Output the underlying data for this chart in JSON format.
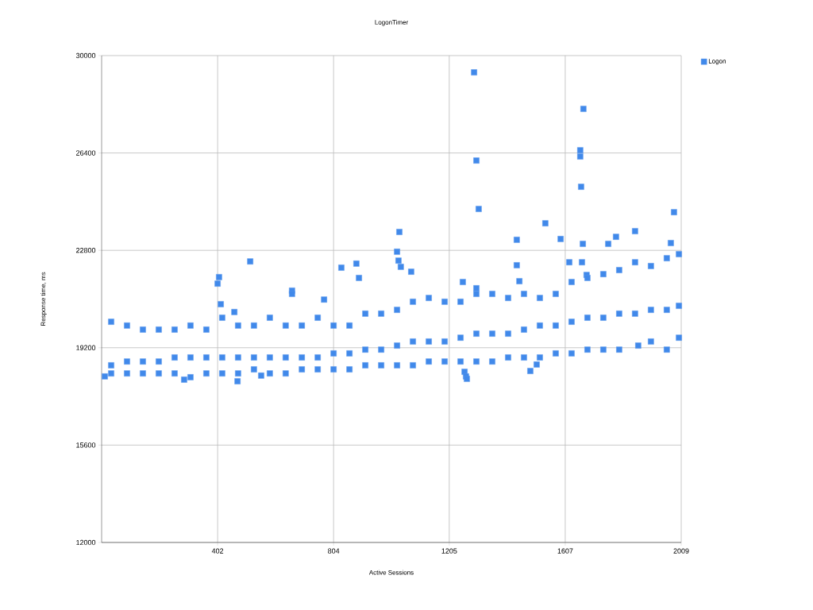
{
  "chart_data": {
    "type": "scatter",
    "title": "LogonTimer",
    "xlabel": "Active Sessions",
    "ylabel": "Response time, ms",
    "xlim": [
      0,
      2009
    ],
    "xticks": [
      402,
      804,
      1205,
      1607,
      2009
    ],
    "ylim": [
      12000,
      30000
    ],
    "yticks": [
      12000,
      15600,
      19200,
      22800,
      26400,
      30000
    ],
    "grid": true,
    "legend": "top right",
    "marker": "square",
    "x": [
      11,
      33,
      33,
      33,
      88,
      88,
      88,
      143,
      143,
      143,
      198,
      198,
      198,
      253,
      253,
      253,
      286,
      308,
      308,
      308,
      363,
      363,
      363,
      402,
      407,
      413,
      418,
      418,
      418,
      460,
      471,
      473,
      473,
      473,
      515,
      528,
      528,
      528,
      553,
      583,
      583,
      583,
      638,
      638,
      638,
      660,
      660,
      694,
      694,
      694,
      749,
      749,
      749,
      771,
      804,
      804,
      804,
      831,
      859,
      859,
      859,
      883,
      892,
      914,
      914,
      914,
      969,
      969,
      969,
      1024,
      1024,
      1024,
      1024,
      1029,
      1032,
      1037,
      1073,
      1079,
      1079,
      1079,
      1134,
      1134,
      1134,
      1189,
      1189,
      1189,
      1244,
      1244,
      1244,
      1252,
      1258,
      1263,
      1266,
      1291,
      1299,
      1299,
      1299,
      1299,
      1299,
      1307,
      1354,
      1354,
      1354,
      1409,
      1409,
      1409,
      1439,
      1439,
      1448,
      1464,
      1464,
      1464,
      1486,
      1508,
      1519,
      1519,
      1519,
      1538,
      1574,
      1574,
      1574,
      1591,
      1621,
      1629,
      1629,
      1629,
      1659,
      1659,
      1662,
      1665,
      1668,
      1670,
      1681,
      1684,
      1684,
      1684,
      1739,
      1739,
      1739,
      1756,
      1783,
      1794,
      1794,
      1794,
      1849,
      1849,
      1849,
      1860,
      1904,
      1904,
      1904,
      1959,
      1959,
      1959,
      1973,
      1984,
      2001,
      2001,
      2001
    ],
    "series": [
      {
        "name": "Logon",
        "color": "#4189ea",
        "values": [
          18140,
          20160,
          18550,
          18250,
          20020,
          18690,
          18250,
          19870,
          18690,
          18250,
          19870,
          18690,
          18250,
          19870,
          18840,
          18250,
          18020,
          20020,
          18840,
          18110,
          19870,
          18840,
          18250,
          21570,
          21810,
          20810,
          20310,
          18840,
          18250,
          20520,
          17960,
          20020,
          18840,
          18250,
          22390,
          20020,
          18840,
          18400,
          18170,
          20310,
          18840,
          18250,
          20020,
          18840,
          18250,
          21310,
          21190,
          20020,
          18840,
          18400,
          20310,
          18840,
          18400,
          20980,
          20020,
          18990,
          18400,
          22160,
          20020,
          18990,
          18400,
          22310,
          21780,
          20460,
          19130,
          18550,
          20460,
          19130,
          18550,
          20600,
          19280,
          18550,
          22750,
          22420,
          23480,
          22190,
          22010,
          20900,
          19430,
          18550,
          21040,
          19430,
          18690,
          20900,
          19430,
          18690,
          20900,
          19570,
          18690,
          21630,
          18310,
          18140,
          18050,
          29380,
          26120,
          21400,
          21190,
          19720,
          18690,
          24330,
          21190,
          19720,
          18690,
          21040,
          19720,
          18840,
          23190,
          22250,
          21660,
          21190,
          19870,
          18840,
          18340,
          18580,
          21040,
          20020,
          18840,
          23800,
          21190,
          20020,
          18990,
          23220,
          22360,
          21630,
          20160,
          18990,
          26500,
          26270,
          25150,
          22360,
          23040,
          28030,
          21890,
          21780,
          20310,
          19130,
          21920,
          20310,
          19130,
          23040,
          23300,
          22070,
          20460,
          19130,
          23510,
          22360,
          20460,
          19280,
          22220,
          20600,
          19430,
          22510,
          20600,
          19130,
          23070,
          24210,
          22660,
          20750,
          19570
        ]
      }
    ]
  }
}
